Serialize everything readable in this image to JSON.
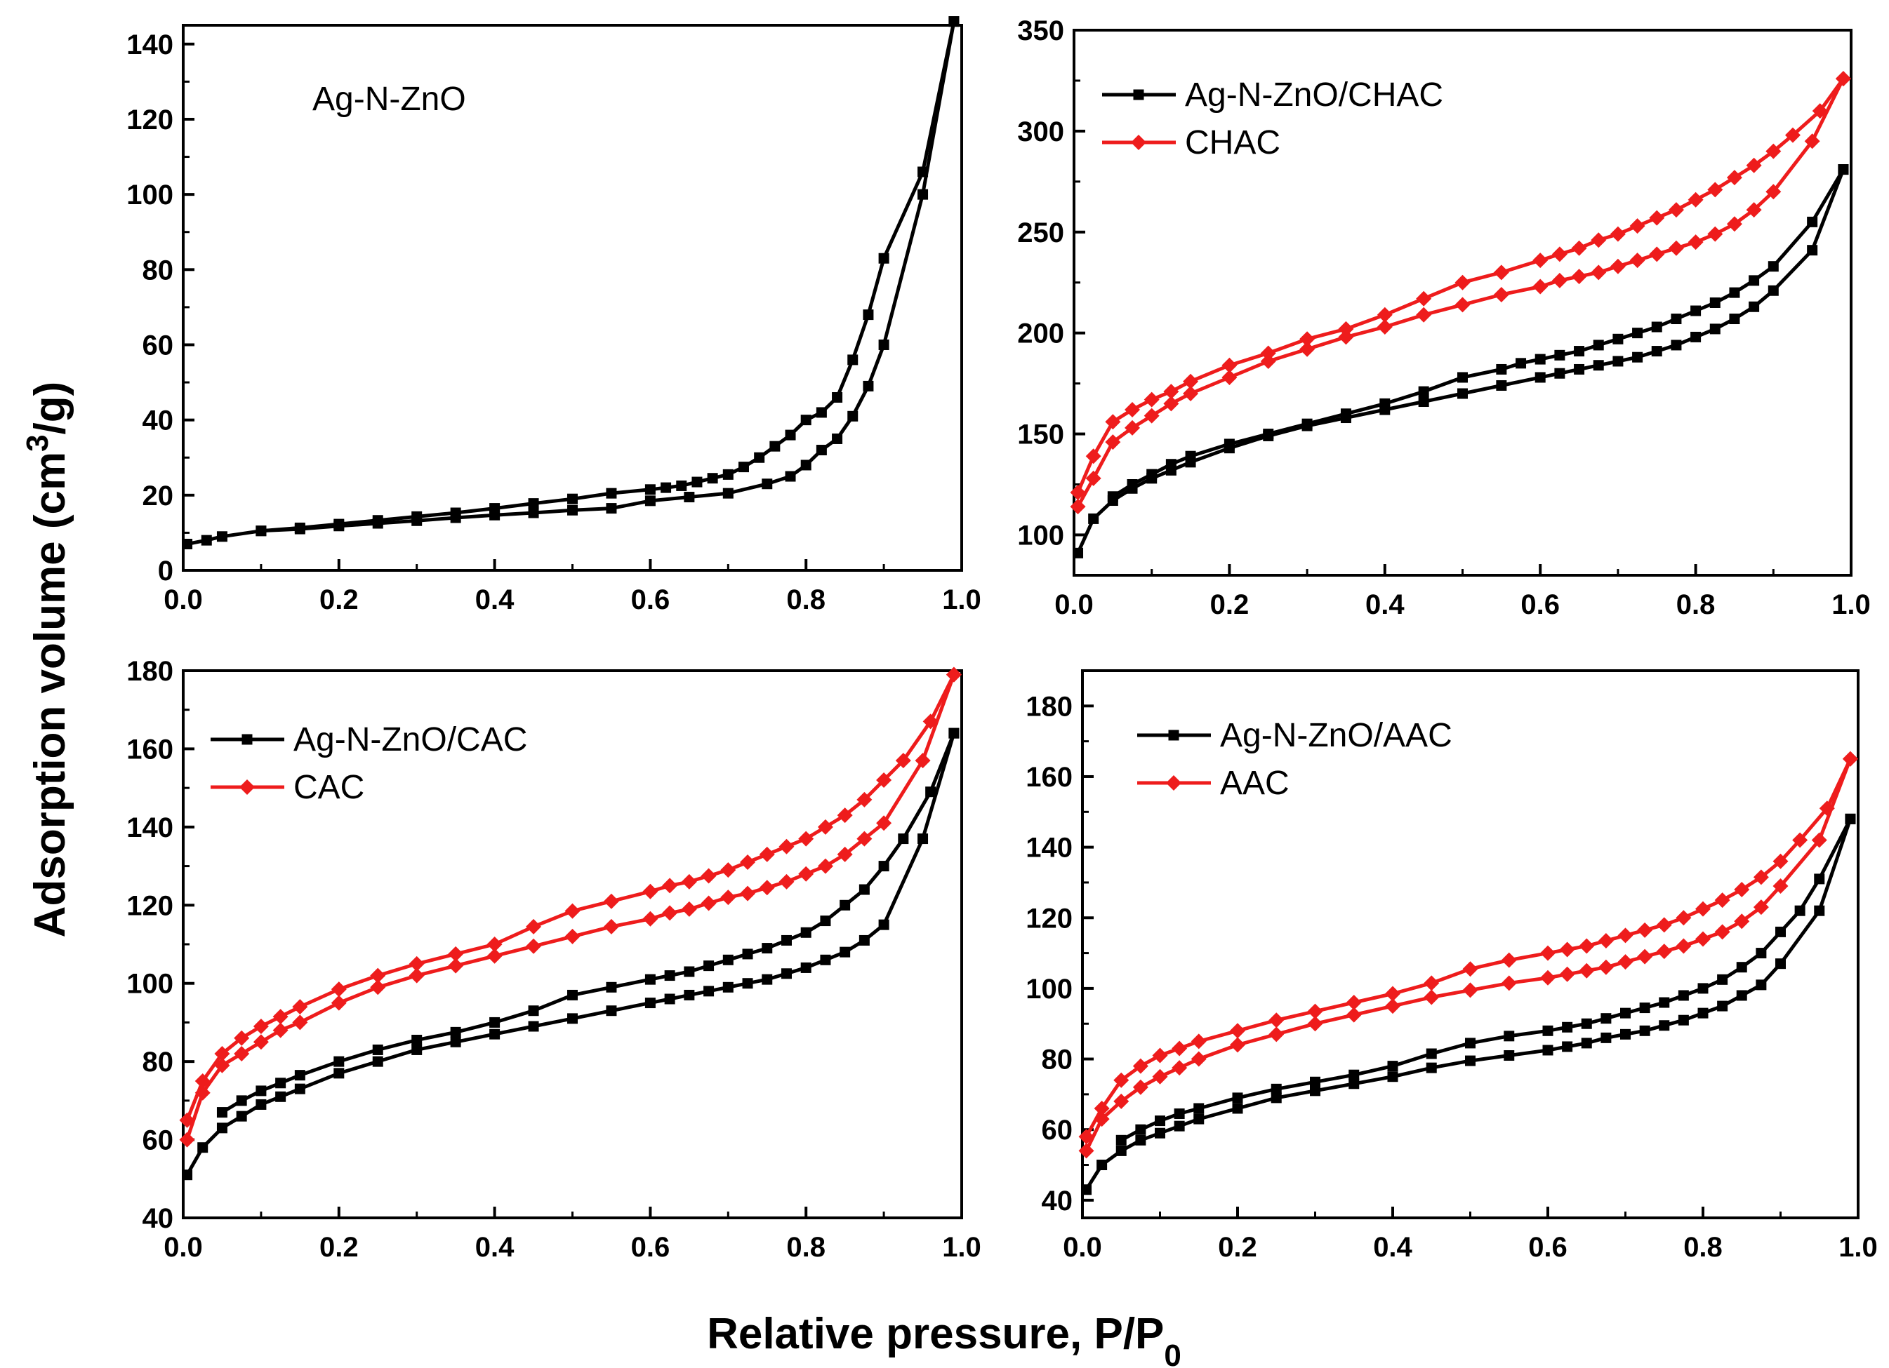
{
  "figure": {
    "ylabel": {
      "main": "Adsorption volume (cm",
      "sup": "3",
      "tail": "/g)"
    },
    "xlabel": {
      "main": "Relative pressure, P/P",
      "sub": "0"
    }
  },
  "colors": {
    "black_series": "#000000",
    "red_series": "#ee1c1c",
    "axis": "#000000"
  },
  "chart_data": [
    {
      "type": "line",
      "panel": "top-left",
      "title_annotation": "Ag-N-ZnO",
      "xlim": [
        0,
        1
      ],
      "ylim": [
        0,
        145
      ],
      "xticks": [
        "0.0",
        "0.2",
        "0.4",
        "0.6",
        "0.8",
        "1.0"
      ],
      "yticks": [
        0,
        20,
        40,
        60,
        80,
        100,
        120,
        140
      ],
      "legend_position": "none",
      "series": [
        {
          "name": "Ag-N-ZnO adsorption",
          "color": "black",
          "marker": "square",
          "x": [
            0.005,
            0.03,
            0.05,
            0.1,
            0.15,
            0.2,
            0.25,
            0.3,
            0.35,
            0.4,
            0.45,
            0.5,
            0.55,
            0.6,
            0.65,
            0.7,
            0.75,
            0.78,
            0.8,
            0.82,
            0.84,
            0.86,
            0.88,
            0.9,
            0.95,
            0.99
          ],
          "y": [
            7,
            8,
            9,
            10.5,
            11,
            11.8,
            12.5,
            13.2,
            14,
            14.7,
            15.3,
            16,
            16.5,
            18.5,
            19.5,
            20.5,
            23,
            25,
            28,
            32,
            35,
            41,
            49,
            60,
            100,
            146
          ]
        },
        {
          "name": "Ag-N-ZnO desorption",
          "color": "black",
          "marker": "square",
          "x": [
            0.99,
            0.95,
            0.9,
            0.88,
            0.86,
            0.84,
            0.82,
            0.8,
            0.78,
            0.76,
            0.74,
            0.72,
            0.7,
            0.68,
            0.66,
            0.64,
            0.62,
            0.6,
            0.55,
            0.5,
            0.45,
            0.4,
            0.35,
            0.3,
            0.25,
            0.2,
            0.15,
            0.1
          ],
          "y": [
            146,
            106,
            83,
            68,
            56,
            46,
            42,
            40,
            36,
            33,
            30,
            27.5,
            25.5,
            24.5,
            23.5,
            22.5,
            22,
            21.5,
            20.5,
            19,
            17.8,
            16.5,
            15.3,
            14.3,
            13.3,
            12.3,
            11.3,
            10.5
          ]
        }
      ]
    },
    {
      "type": "line",
      "panel": "top-right",
      "xlim": [
        0,
        1
      ],
      "ylim": [
        80,
        350
      ],
      "xticks": [
        "0.0",
        "0.2",
        "0.4",
        "0.6",
        "0.8",
        "1.0"
      ],
      "yticks": [
        100,
        150,
        200,
        250,
        300,
        350
      ],
      "legend_position": "top-left",
      "legend": [
        "Ag-N-ZnO/CHAC",
        "CHAC"
      ],
      "series": [
        {
          "name": "Ag-N-ZnO/CHAC adsorption",
          "color": "black",
          "marker": "square",
          "x": [
            0.005,
            0.025,
            0.05,
            0.075,
            0.1,
            0.125,
            0.15,
            0.2,
            0.25,
            0.3,
            0.35,
            0.4,
            0.45,
            0.5,
            0.55,
            0.6,
            0.625,
            0.65,
            0.675,
            0.7,
            0.725,
            0.75,
            0.775,
            0.8,
            0.825,
            0.85,
            0.875,
            0.9,
            0.95,
            0.99
          ],
          "y": [
            91,
            108,
            117,
            123,
            128,
            132,
            136,
            143,
            149,
            154,
            158,
            162,
            166,
            170,
            174,
            178,
            180,
            182,
            184,
            186,
            188,
            191,
            194,
            198,
            202,
            207,
            213,
            221,
            241,
            281
          ]
        },
        {
          "name": "Ag-N-ZnO/CHAC desorption",
          "color": "black",
          "marker": "square",
          "x": [
            0.99,
            0.95,
            0.9,
            0.875,
            0.85,
            0.825,
            0.8,
            0.775,
            0.75,
            0.725,
            0.7,
            0.675,
            0.65,
            0.625,
            0.6,
            0.575,
            0.55,
            0.5,
            0.45,
            0.4,
            0.35,
            0.3,
            0.25,
            0.2,
            0.15,
            0.125,
            0.1,
            0.075,
            0.05
          ],
          "y": [
            281,
            255,
            233,
            226,
            220,
            215,
            211,
            207,
            203,
            200,
            197,
            194,
            191,
            189,
            187,
            185,
            182,
            178,
            171,
            165,
            160,
            155,
            150,
            145,
            139,
            135,
            130,
            125,
            119
          ]
        },
        {
          "name": "CHAC adsorption",
          "color": "red",
          "marker": "diamond",
          "x": [
            0.005,
            0.025,
            0.05,
            0.075,
            0.1,
            0.125,
            0.15,
            0.2,
            0.25,
            0.3,
            0.35,
            0.4,
            0.45,
            0.5,
            0.55,
            0.6,
            0.625,
            0.65,
            0.675,
            0.7,
            0.725,
            0.75,
            0.775,
            0.8,
            0.825,
            0.85,
            0.875,
            0.9,
            0.95,
            0.99
          ],
          "y": [
            114,
            128,
            146,
            153,
            159,
            165,
            170,
            178,
            186,
            192,
            198,
            203,
            209,
            214,
            219,
            223,
            226,
            228,
            230,
            233,
            236,
            239,
            242,
            245,
            249,
            254,
            261,
            270,
            295,
            326
          ]
        },
        {
          "name": "CHAC desorption",
          "color": "red",
          "marker": "diamond",
          "x": [
            0.99,
            0.96,
            0.925,
            0.9,
            0.875,
            0.85,
            0.825,
            0.8,
            0.775,
            0.75,
            0.725,
            0.7,
            0.675,
            0.65,
            0.625,
            0.6,
            0.55,
            0.5,
            0.45,
            0.4,
            0.35,
            0.3,
            0.25,
            0.2,
            0.15,
            0.125,
            0.1,
            0.075,
            0.05,
            0.025,
            0.005
          ],
          "y": [
            326,
            310,
            298,
            290,
            283,
            277,
            271,
            266,
            261,
            257,
            253,
            249,
            246,
            242,
            239,
            236,
            230,
            225,
            217,
            209,
            202,
            197,
            190,
            184,
            176,
            171,
            167,
            162,
            156,
            139,
            121
          ]
        }
      ]
    },
    {
      "type": "line",
      "panel": "bottom-left",
      "xlim": [
        0,
        1
      ],
      "ylim": [
        40,
        180
      ],
      "xticks": [
        "0.0",
        "0.2",
        "0.4",
        "0.6",
        "0.8",
        "1.0"
      ],
      "yticks": [
        40,
        60,
        80,
        100,
        120,
        140,
        160,
        180
      ],
      "legend_position": "top-left",
      "legend": [
        "Ag-N-ZnO/CAC",
        "CAC"
      ],
      "series": [
        {
          "name": "Ag-N-ZnO/CAC adsorption",
          "color": "black",
          "marker": "square",
          "x": [
            0.005,
            0.025,
            0.05,
            0.075,
            0.1,
            0.125,
            0.15,
            0.2,
            0.25,
            0.3,
            0.35,
            0.4,
            0.45,
            0.5,
            0.55,
            0.6,
            0.625,
            0.65,
            0.675,
            0.7,
            0.725,
            0.75,
            0.775,
            0.8,
            0.825,
            0.85,
            0.875,
            0.9,
            0.95,
            0.99
          ],
          "y": [
            51,
            58,
            63,
            66,
            69,
            71,
            73,
            77,
            80,
            83,
            85,
            87,
            89,
            91,
            93,
            95,
            96,
            97,
            98,
            99,
            100,
            101,
            102.5,
            104,
            106,
            108,
            111,
            115,
            137,
            164
          ]
        },
        {
          "name": "Ag-N-ZnO/CAC desorption",
          "color": "black",
          "marker": "square",
          "x": [
            0.99,
            0.96,
            0.925,
            0.9,
            0.875,
            0.85,
            0.825,
            0.8,
            0.775,
            0.75,
            0.725,
            0.7,
            0.675,
            0.65,
            0.625,
            0.6,
            0.55,
            0.5,
            0.45,
            0.4,
            0.35,
            0.3,
            0.25,
            0.2,
            0.15,
            0.125,
            0.1,
            0.075,
            0.05
          ],
          "y": [
            164,
            149,
            137,
            130,
            124,
            120,
            116,
            113,
            111,
            109,
            107.5,
            106,
            104.5,
            103,
            102,
            101,
            99,
            97,
            93,
            90,
            87.5,
            85.5,
            83,
            80,
            76.5,
            74.5,
            72.5,
            70,
            67
          ]
        },
        {
          "name": "CAC adsorption",
          "color": "red",
          "marker": "diamond",
          "x": [
            0.005,
            0.025,
            0.05,
            0.075,
            0.1,
            0.125,
            0.15,
            0.2,
            0.25,
            0.3,
            0.35,
            0.4,
            0.45,
            0.5,
            0.55,
            0.6,
            0.625,
            0.65,
            0.675,
            0.7,
            0.725,
            0.75,
            0.775,
            0.8,
            0.825,
            0.85,
            0.875,
            0.9,
            0.95,
            0.99
          ],
          "y": [
            60,
            72,
            79,
            82,
            85,
            88,
            90,
            95,
            99,
            102,
            104.5,
            107,
            109.5,
            112,
            114.5,
            116.5,
            118,
            119,
            120.5,
            122,
            123,
            124.5,
            126,
            128,
            130,
            133,
            137,
            141,
            157,
            179
          ]
        },
        {
          "name": "CAC desorption",
          "color": "red",
          "marker": "diamond",
          "x": [
            0.99,
            0.96,
            0.925,
            0.9,
            0.875,
            0.85,
            0.825,
            0.8,
            0.775,
            0.75,
            0.725,
            0.7,
            0.675,
            0.65,
            0.625,
            0.6,
            0.55,
            0.5,
            0.45,
            0.4,
            0.35,
            0.3,
            0.25,
            0.2,
            0.15,
            0.125,
            0.1,
            0.075,
            0.05,
            0.025,
            0.005
          ],
          "y": [
            179,
            167,
            157,
            152,
            147,
            143,
            140,
            137,
            135,
            133,
            131,
            129,
            127.5,
            126,
            125,
            123.5,
            121,
            118.5,
            114.5,
            110,
            107.5,
            105,
            102,
            98.5,
            94,
            91.5,
            89,
            86,
            82,
            75,
            65
          ]
        }
      ]
    },
    {
      "type": "line",
      "panel": "bottom-right",
      "xlim": [
        0,
        1
      ],
      "ylim": [
        35,
        190
      ],
      "xticks": [
        "0.0",
        "0.2",
        "0.4",
        "0.6",
        "0.8",
        "1.0"
      ],
      "yticks": [
        40,
        60,
        80,
        100,
        120,
        140,
        160,
        180
      ],
      "legend_position": "top-left",
      "legend": [
        "Ag-N-ZnO/AAC",
        "AAC"
      ],
      "series": [
        {
          "name": "Ag-N-ZnO/AAC adsorption",
          "color": "black",
          "marker": "square",
          "x": [
            0.005,
            0.025,
            0.05,
            0.075,
            0.1,
            0.125,
            0.15,
            0.2,
            0.25,
            0.3,
            0.35,
            0.4,
            0.45,
            0.5,
            0.55,
            0.6,
            0.625,
            0.65,
            0.675,
            0.7,
            0.725,
            0.75,
            0.775,
            0.8,
            0.825,
            0.85,
            0.875,
            0.9,
            0.95,
            0.99
          ],
          "y": [
            43,
            50,
            54,
            57,
            59,
            61,
            63,
            66,
            69,
            71,
            73,
            75,
            77.5,
            79.5,
            81,
            82.5,
            83.5,
            84.5,
            86,
            87,
            88,
            89.5,
            91,
            93,
            95,
            98,
            101,
            107,
            122,
            148
          ]
        },
        {
          "name": "Ag-N-ZnO/AAC desorption",
          "color": "black",
          "marker": "square",
          "x": [
            0.99,
            0.95,
            0.925,
            0.9,
            0.875,
            0.85,
            0.825,
            0.8,
            0.775,
            0.75,
            0.725,
            0.7,
            0.675,
            0.65,
            0.625,
            0.6,
            0.55,
            0.5,
            0.45,
            0.4,
            0.35,
            0.3,
            0.25,
            0.2,
            0.15,
            0.125,
            0.1,
            0.075,
            0.05
          ],
          "y": [
            148,
            131,
            122,
            116,
            110,
            106,
            102.5,
            100,
            98,
            96,
            94.5,
            93,
            91.5,
            90,
            89,
            88,
            86.5,
            84.5,
            81.5,
            78,
            75.5,
            73.5,
            71.5,
            69,
            66,
            64.5,
            62.5,
            60,
            57
          ]
        },
        {
          "name": "AAC adsorption",
          "color": "red",
          "marker": "diamond",
          "x": [
            0.005,
            0.025,
            0.05,
            0.075,
            0.1,
            0.125,
            0.15,
            0.2,
            0.25,
            0.3,
            0.35,
            0.4,
            0.45,
            0.5,
            0.55,
            0.6,
            0.625,
            0.65,
            0.675,
            0.7,
            0.725,
            0.75,
            0.775,
            0.8,
            0.825,
            0.85,
            0.875,
            0.9,
            0.95,
            0.99
          ],
          "y": [
            54,
            63,
            68,
            72,
            75,
            77.5,
            80,
            84,
            87,
            90,
            92.5,
            95,
            97.5,
            99.5,
            101.5,
            103,
            104,
            105,
            106,
            107.5,
            109,
            110.5,
            112,
            114,
            116,
            119,
            123,
            129,
            142,
            165
          ]
        },
        {
          "name": "AAC desorption",
          "color": "red",
          "marker": "diamond",
          "x": [
            0.99,
            0.96,
            0.925,
            0.9,
            0.875,
            0.85,
            0.825,
            0.8,
            0.775,
            0.75,
            0.725,
            0.7,
            0.675,
            0.65,
            0.625,
            0.6,
            0.55,
            0.5,
            0.45,
            0.4,
            0.35,
            0.3,
            0.25,
            0.2,
            0.15,
            0.125,
            0.1,
            0.075,
            0.05,
            0.025,
            0.005
          ],
          "y": [
            165,
            151,
            142,
            136,
            131.5,
            128,
            125,
            122.5,
            120,
            118,
            116.5,
            115,
            113.5,
            112,
            111,
            110,
            108,
            105.5,
            101.5,
            98.5,
            96,
            93.5,
            91,
            88,
            85,
            83,
            81,
            78,
            74,
            66,
            58
          ]
        }
      ]
    }
  ]
}
